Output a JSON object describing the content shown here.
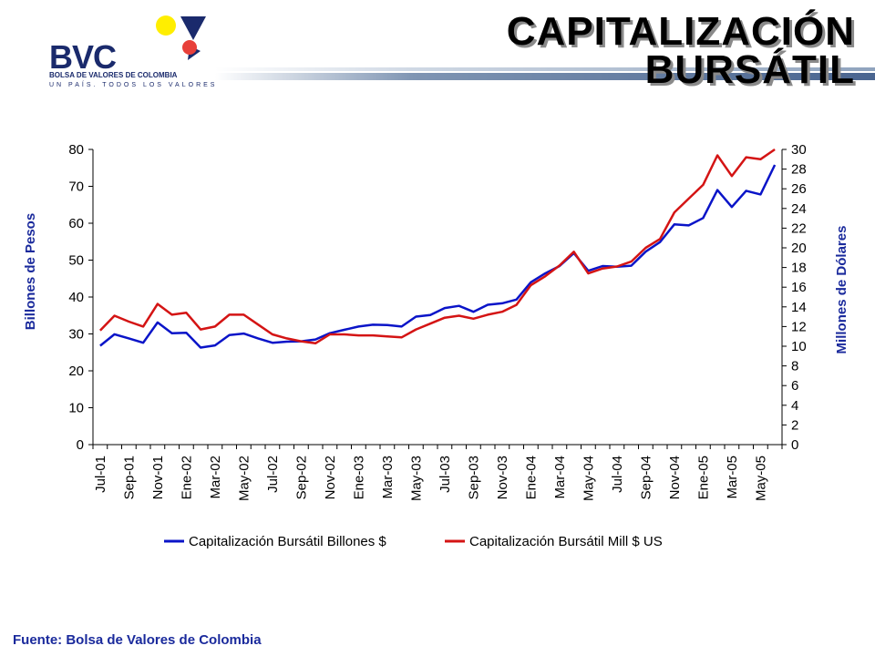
{
  "header": {
    "logo_text": "BVC",
    "logo_subtitle": "BOLSA DE VALORES DE COLOMBIA",
    "logo_tagline": "UN PAÍS. TODOS LOS VALORES",
    "title_line1": "CAPITALIZACIÓN",
    "title_line2": "BURSÁTIL"
  },
  "colors": {
    "series_pesos": "#0a14c8",
    "series_usd": "#d41414",
    "label_blue": "#1a2a9c",
    "logo_yellow": "#ffee00",
    "logo_red": "#e8403a",
    "logo_navy": "#1a2a6c"
  },
  "footer": {
    "source": "Fuente: Bolsa de Valores de Colombia"
  },
  "chart_data": {
    "type": "line",
    "ylabel": "Billones de Pesos",
    "y2label": "Millones de Dólares",
    "ylim": [
      0,
      80
    ],
    "y2lim": [
      0,
      30
    ],
    "yticks": [
      "0",
      "10",
      "20",
      "30",
      "40",
      "50",
      "60",
      "70",
      "80"
    ],
    "y2ticks": [
      "0",
      "2",
      "4",
      "6",
      "8",
      "10",
      "12",
      "14",
      "16",
      "18",
      "20",
      "22",
      "24",
      "26",
      "28",
      "30"
    ],
    "xticklabels": [
      "Jul-01",
      "Sep-01",
      "Nov-01",
      "Ene-02",
      "Mar-02",
      "May-02",
      "Jul-02",
      "Sep-02",
      "Nov-02",
      "Ene-03",
      "Mar-03",
      "May-03",
      "Jul-03",
      "Sep-03",
      "Nov-03",
      "Ene-04",
      "Mar-04",
      "May-04",
      "Jul-04",
      "Sep-04",
      "Nov-04",
      "Ene-05",
      "Mar-05",
      "May-05"
    ],
    "grid": false,
    "legend_position": "bottom",
    "series": [
      {
        "name": "Capitalización Bursátil  Billones $",
        "axis": "left",
        "values": [
          26.8,
          29.9,
          28.8,
          27.6,
          33.1,
          30.2,
          30.3,
          26.3,
          26.9,
          29.7,
          30.1,
          28.8,
          27.6,
          27.9,
          28.0,
          28.5,
          30.2,
          31.1,
          32.0,
          32.5,
          32.4,
          32.0,
          34.7,
          35.1,
          37.0,
          37.6,
          36.0,
          37.9,
          38.3,
          39.3,
          44.0,
          46.4,
          48.4,
          51.9,
          47.1,
          48.4,
          48.2,
          48.5,
          52.3,
          54.9,
          59.7,
          59.4,
          61.4,
          69.0,
          64.4,
          68.8,
          67.8,
          75.8
        ]
      },
      {
        "name": "Capitalización Bursátil Mill $ US",
        "axis": "right",
        "values": [
          11.6,
          13.1,
          12.5,
          12.0,
          14.3,
          13.2,
          13.4,
          11.7,
          12.0,
          13.2,
          13.2,
          12.2,
          11.2,
          10.8,
          10.5,
          10.3,
          11.2,
          11.2,
          11.1,
          11.1,
          11.0,
          10.9,
          11.7,
          12.3,
          12.9,
          13.1,
          12.8,
          13.2,
          13.5,
          14.2,
          16.2,
          17.1,
          18.2,
          19.6,
          17.4,
          17.9,
          18.1,
          18.6,
          20.0,
          20.9,
          23.6,
          25.0,
          26.4,
          29.4,
          27.3,
          29.2,
          29.0,
          30.0
        ]
      }
    ]
  }
}
